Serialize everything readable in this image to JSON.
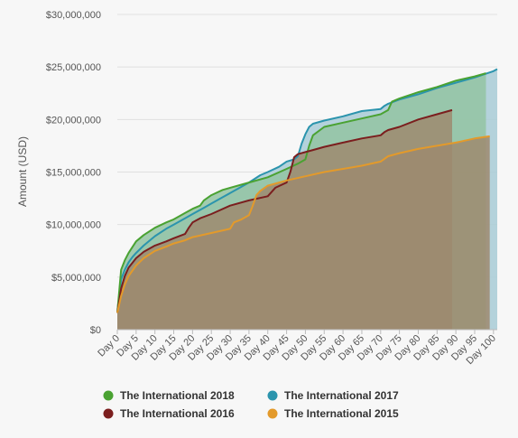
{
  "chart_data": {
    "type": "area",
    "title": "",
    "xlabel": "",
    "ylabel": "Amount (USD)",
    "xlim": [
      0,
      101
    ],
    "ylim": [
      0,
      30000000
    ],
    "y_ticks": [
      0,
      5000000,
      10000000,
      15000000,
      20000000,
      25000000,
      30000000
    ],
    "y_tick_labels": [
      "$0",
      "$5,000,000",
      "$10,000,000",
      "$15,000,000",
      "$20,000,000",
      "$25,000,000",
      "$30,000,000"
    ],
    "x_ticks": [
      0,
      5,
      10,
      15,
      20,
      25,
      30,
      35,
      40,
      45,
      50,
      55,
      60,
      65,
      70,
      75,
      80,
      85,
      90,
      95,
      100
    ],
    "x_tick_labels": [
      "Day 0",
      "Day 5",
      "Day 10",
      "Day 15",
      "Day 20",
      "Day 25",
      "Day 30",
      "Day 35",
      "Day 40",
      "Day 45",
      "Day 50",
      "Day 55",
      "Day 60",
      "Day 65",
      "Day 70",
      "Day 75",
      "Day 80",
      "Day 85",
      "Day 90",
      "Day 95",
      "Day 100"
    ],
    "grid": "horizontal",
    "legend_position": "bottom",
    "series": [
      {
        "name": "The International 2017",
        "color": "#2b94ad",
        "fill": "#a8cbd6",
        "x": [
          0,
          1,
          2,
          3,
          4,
          5,
          7,
          10,
          13,
          15,
          18,
          20,
          23,
          25,
          28,
          30,
          33,
          35,
          38,
          40,
          43,
          45,
          47,
          48,
          49,
          50,
          51,
          52,
          55,
          60,
          65,
          70,
          71,
          72,
          75,
          80,
          85,
          90,
          95,
          100,
          101
        ],
        "y": [
          1700000,
          4800000,
          5700000,
          6400000,
          6900000,
          7300000,
          8000000,
          8900000,
          9600000,
          10000000,
          10600000,
          11000000,
          11600000,
          12000000,
          12600000,
          13000000,
          13600000,
          14000000,
          14700000,
          15000000,
          15500000,
          16000000,
          16200000,
          16500000,
          17700000,
          18600000,
          19300000,
          19600000,
          19900000,
          20300000,
          20800000,
          21000000,
          21300000,
          21500000,
          21900000,
          22400000,
          23000000,
          23500000,
          24000000,
          24600000,
          24800000
        ]
      },
      {
        "name": "The International 2018",
        "color": "#4aa232",
        "fill": "#93c4a2",
        "x": [
          0,
          1,
          2,
          3,
          5,
          7,
          10,
          13,
          15,
          18,
          20,
          22,
          23,
          25,
          28,
          30,
          35,
          40,
          45,
          48,
          50,
          51,
          52,
          55,
          60,
          65,
          70,
          72,
          73,
          75,
          80,
          85,
          90,
          95,
          98
        ],
        "y": [
          1600000,
          5700000,
          6600000,
          7300000,
          8400000,
          9000000,
          9700000,
          10200000,
          10500000,
          11100000,
          11500000,
          11800000,
          12300000,
          12800000,
          13300000,
          13500000,
          14000000,
          14500000,
          15300000,
          15800000,
          16200000,
          17500000,
          18500000,
          19300000,
          19700000,
          20100000,
          20500000,
          20900000,
          21700000,
          22000000,
          22600000,
          23100000,
          23700000,
          24100000,
          24400000
        ]
      },
      {
        "name": "The International 2016",
        "color": "#7b1e1e",
        "fill": "#9d8a6f",
        "x": [
          0,
          1,
          2,
          3,
          5,
          7,
          10,
          13,
          15,
          18,
          19,
          20,
          22,
          25,
          30,
          35,
          40,
          42,
          45,
          46,
          47,
          48,
          50,
          52,
          55,
          60,
          65,
          70,
          71,
          72,
          75,
          80,
          85,
          89
        ],
        "y": [
          1600000,
          3900000,
          5100000,
          5900000,
          6800000,
          7400000,
          8000000,
          8400000,
          8700000,
          9100000,
          9700000,
          10200000,
          10600000,
          11000000,
          11800000,
          12300000,
          12700000,
          13500000,
          14000000,
          15000000,
          16400000,
          16700000,
          16900000,
          17100000,
          17400000,
          17800000,
          18200000,
          18500000,
          18800000,
          19000000,
          19300000,
          20000000,
          20500000,
          20900000
        ]
      },
      {
        "name": "The International 2015",
        "color": "#e39a2b",
        "fill": "#9d8a6f",
        "x": [
          0,
          1,
          2,
          3,
          5,
          7,
          10,
          13,
          15,
          18,
          20,
          25,
          30,
          31,
          33,
          35,
          36,
          37,
          38,
          40,
          45,
          50,
          55,
          60,
          65,
          70,
          72,
          75,
          80,
          85,
          90,
          95,
          99
        ],
        "y": [
          1600000,
          3200000,
          4300000,
          5100000,
          6100000,
          6800000,
          7500000,
          7900000,
          8200000,
          8500000,
          8800000,
          9200000,
          9600000,
          10200000,
          10500000,
          10900000,
          11800000,
          12800000,
          13200000,
          13700000,
          14200000,
          14600000,
          15000000,
          15300000,
          15600000,
          16000000,
          16500000,
          16800000,
          17200000,
          17500000,
          17800000,
          18200000,
          18400000
        ]
      }
    ],
    "legend": [
      {
        "name": "The International 2018",
        "color": "#4aa232"
      },
      {
        "name": "The International 2017",
        "color": "#2b94ad"
      },
      {
        "name": "The International 2016",
        "color": "#7b1e1e"
      },
      {
        "name": "The International 2015",
        "color": "#e39a2b"
      }
    ]
  }
}
